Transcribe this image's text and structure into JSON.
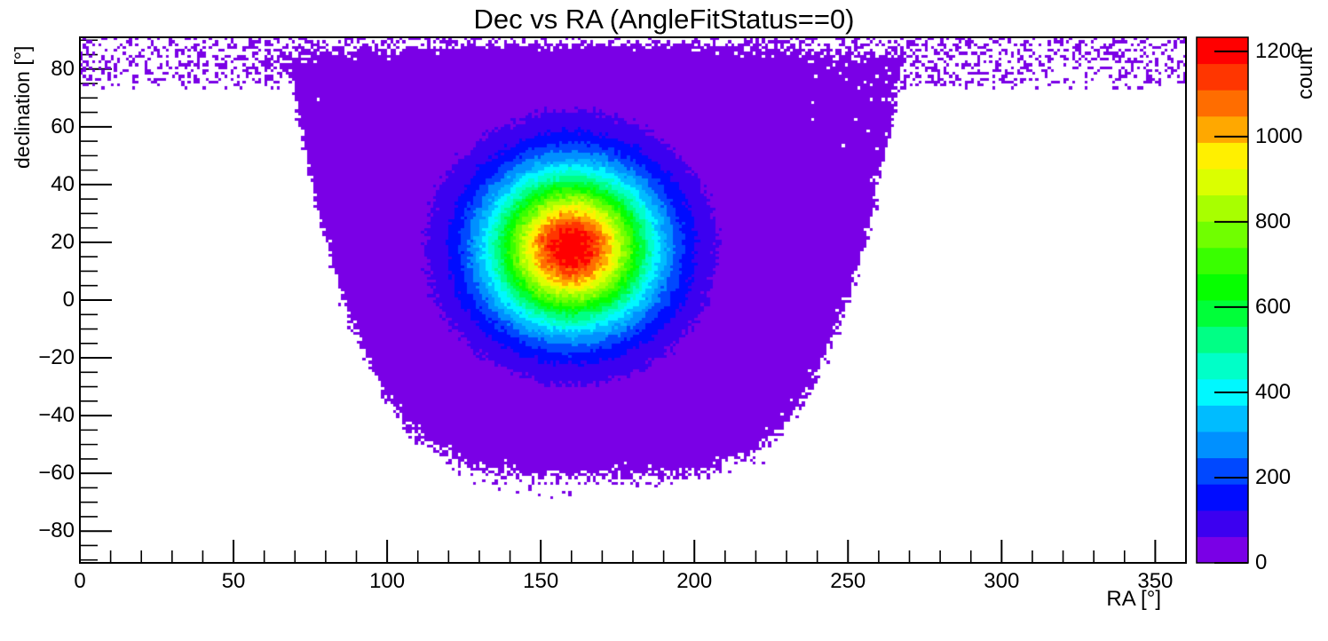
{
  "title": "Dec vs RA (AngleFitStatus==0)",
  "axes": {
    "x": {
      "label": "RA [°]",
      "min": 0,
      "max": 360,
      "major_ticks": [
        0,
        50,
        100,
        150,
        200,
        250,
        300,
        350
      ],
      "major_tick_labels": [
        "0",
        "50",
        "100",
        "150",
        "200",
        "250",
        "300",
        "350"
      ],
      "minor_step": 10
    },
    "y": {
      "label": "declination [°]",
      "min": -91,
      "max": 91,
      "major_ticks": [
        -80,
        -60,
        -40,
        -20,
        0,
        20,
        40,
        60,
        80
      ],
      "major_tick_labels": [
        "−80",
        "−60",
        "−40",
        "−20",
        "0",
        "20",
        "40",
        "60",
        "80"
      ],
      "minor_step": 5
    },
    "z": {
      "label": "count",
      "min": 0,
      "max": 1233,
      "ticks": [
        0,
        200,
        400,
        600,
        800,
        1000,
        1200
      ],
      "tick_labels": [
        "0",
        "200",
        "400",
        "600",
        "800",
        "1000",
        "1200"
      ]
    }
  },
  "chart_data": {
    "type": "heatmap",
    "title": "Dec vs RA (AngleFitStatus==0)",
    "xlabel": "RA [°]",
    "ylabel": "declination [°]",
    "zlabel": "count",
    "x_range": [
      0,
      360
    ],
    "y_range": [
      -91,
      91
    ],
    "z_range": [
      0,
      1233
    ],
    "bins": {
      "nx": 360,
      "ny": 182
    },
    "grid": false,
    "legend_position": "right-colorbar",
    "colorbar_ticks": [
      0,
      200,
      400,
      600,
      800,
      1000,
      1200
    ],
    "palette": [
      "#7A00E6",
      "#3C00F0",
      "#000CFF",
      "#0048FF",
      "#0090FF",
      "#00BCFF",
      "#00F8FF",
      "#00FFC8",
      "#00FF85",
      "#00FF39",
      "#06FF00",
      "#39FF00",
      "#70FF00",
      "#A8FF00",
      "#DBFF00",
      "#FFF000",
      "#FFA800",
      "#FF6D00",
      "#FF3600",
      "#FF0000"
    ],
    "peak": {
      "ra": 160,
      "dec": 18,
      "count": 1233
    },
    "distribution": {
      "model": "2d-gaussian-hotspot + broad-halo, clipped by sky-visibility bathtub mask, Poisson speckle at edges",
      "gaussian": {
        "center_ra": 160,
        "center_dec": 18,
        "sigma_ra": 18,
        "sigma_dec": 18,
        "amplitude": 1200
      },
      "halo": {
        "amplitude": 40,
        "sigma": 48
      },
      "mask": {
        "shape": "bathtub",
        "ra_center": 168,
        "half_width": 100,
        "dec_bottom": -50,
        "exponent": 4.2,
        "edge_fade_deg": 7,
        "top_fade_start": 81.5,
        "top_fade_width": 9
      },
      "top_band": {
        "dec_min": 73,
        "lambda": 0.35
      }
    }
  }
}
